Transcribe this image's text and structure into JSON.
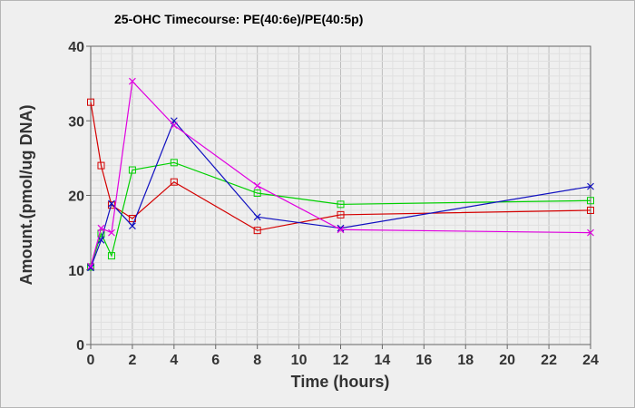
{
  "chart_data": {
    "type": "line",
    "title": "25-OHC Timecourse: PE(40:6e)/PE(40:5p)",
    "xlabel": "Time (hours)",
    "ylabel": "Amount.(pmol/ug DNA)",
    "xlim": [
      0,
      24
    ],
    "ylim": [
      0,
      40
    ],
    "xticks": [
      0,
      2,
      4,
      6,
      8,
      10,
      12,
      14,
      16,
      18,
      20,
      22,
      24
    ],
    "yticks": [
      0,
      10,
      20,
      30,
      40
    ],
    "grid": true,
    "legend": "none",
    "series": [
      {
        "color": "#d40000",
        "marker": "square",
        "points": [
          [
            0,
            32.5
          ],
          [
            0.5,
            24.0
          ],
          [
            1,
            18.7
          ],
          [
            2,
            16.9
          ],
          [
            4,
            21.8
          ],
          [
            8,
            15.3
          ],
          [
            12,
            17.4
          ],
          [
            24,
            18.0
          ]
        ]
      },
      {
        "color": "#00d000",
        "marker": "square",
        "points": [
          [
            0,
            10.4
          ],
          [
            0.5,
            14.9
          ],
          [
            1,
            11.9
          ],
          [
            2,
            23.4
          ],
          [
            4,
            24.4
          ],
          [
            8,
            20.3
          ],
          [
            12,
            18.8
          ],
          [
            24,
            19.3
          ]
        ]
      },
      {
        "color": "#1010c0",
        "marker": "x",
        "points": [
          [
            0,
            10.3
          ],
          [
            0.5,
            14.0
          ],
          [
            1,
            18.9
          ],
          [
            2,
            15.9
          ],
          [
            4,
            30.0
          ],
          [
            8,
            17.1
          ],
          [
            12,
            15.6
          ],
          [
            24,
            21.2
          ]
        ]
      },
      {
        "color": "#e000e0",
        "marker": "x",
        "points": [
          [
            0,
            10.5
          ],
          [
            0.5,
            15.6
          ],
          [
            1,
            15.0
          ],
          [
            2,
            35.3
          ],
          [
            4,
            29.4
          ],
          [
            8,
            21.3
          ],
          [
            12,
            15.4
          ],
          [
            24,
            15.0
          ]
        ]
      }
    ]
  }
}
